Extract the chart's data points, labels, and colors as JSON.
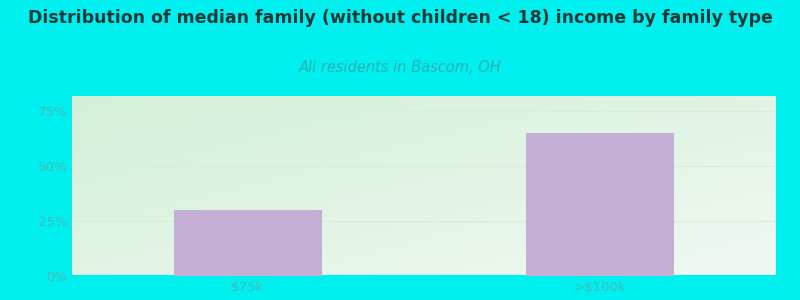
{
  "title": "Distribution of median family (without children < 18) income by family type",
  "subtitle": "All residents in Bascom, OH",
  "categories": [
    "$75k",
    ">$100k"
  ],
  "values": [
    30,
    65
  ],
  "bar_color": "#c4aed4",
  "outer_bg_color": "#00efef",
  "chart_bg_topleft": [
    210,
    240,
    215
  ],
  "chart_bg_bottomright": [
    240,
    248,
    242
  ],
  "title_color": "#1a3a3a",
  "subtitle_color": "#2ab0b0",
  "ytick_color": "#4ab8b8",
  "xtick_color": "#4ab8b8",
  "yticks": [
    0,
    25,
    50,
    75
  ],
  "ytick_labels": [
    "0%",
    "25%",
    "50%",
    "75%"
  ],
  "ylim": [
    0,
    82
  ],
  "title_fontsize": 12.5,
  "subtitle_fontsize": 10.5,
  "grid_color": "#d8eed8",
  "bar_width": 0.42
}
